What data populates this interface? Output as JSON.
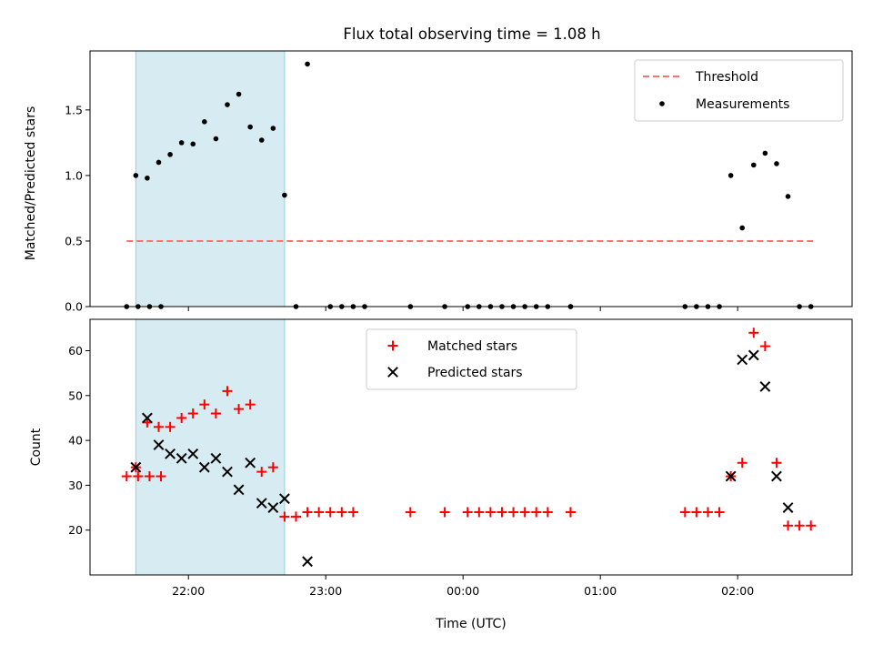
{
  "chart_data": {
    "type": "scatter",
    "title": "Flux total observing time = 1.08 h",
    "shared_x": {
      "label": "Time (UTC)",
      "range": [
        "21:17",
        "02:50"
      ],
      "ticks": [
        {
          "time": "22:00",
          "label": "22:00"
        },
        {
          "time": "23:00",
          "label": "23:00"
        },
        {
          "time": "00:00",
          "label": "00:00"
        },
        {
          "time": "01:00",
          "label": "01:00"
        },
        {
          "time": "02:00",
          "label": "02:00"
        }
      ],
      "highlight_span": {
        "start": "21:37",
        "end": "22:42",
        "color": "#add8e6"
      }
    },
    "panels": [
      {
        "ylabel": "Matched/Predicted stars",
        "ylim": [
          0,
          1.95
        ],
        "yticks": [
          0.0,
          0.5,
          1.0,
          1.5
        ],
        "ytick_labels": [
          "0.0",
          "0.5",
          "1.0",
          "1.5"
        ],
        "legend": {
          "position": "upper right",
          "entries": [
            "Threshold",
            "Measurements"
          ]
        },
        "threshold": {
          "name": "Threshold",
          "y": 0.5,
          "x_start": "21:33",
          "x_end": "02:33",
          "color": "#ff7070",
          "style": "dashed"
        },
        "measurements": {
          "name": "Measurements",
          "color": "#000000",
          "points": [
            [
              "21:33",
              0
            ],
            [
              "21:38",
              0
            ],
            [
              "21:43",
              0
            ],
            [
              "21:48",
              0
            ],
            [
              "21:37",
              1.0
            ],
            [
              "21:42",
              0.98
            ],
            [
              "21:47",
              1.1
            ],
            [
              "21:52",
              1.16
            ],
            [
              "21:57",
              1.25
            ],
            [
              "22:02",
              1.24
            ],
            [
              "22:07",
              1.41
            ],
            [
              "22:12",
              1.28
            ],
            [
              "22:17",
              1.54
            ],
            [
              "22:22",
              1.62
            ],
            [
              "22:27",
              1.37
            ],
            [
              "22:32",
              1.27
            ],
            [
              "22:37",
              1.36
            ],
            [
              "22:42",
              0.85
            ],
            [
              "22:47",
              0
            ],
            [
              "22:52",
              1.85
            ],
            [
              "23:02",
              0
            ],
            [
              "23:07",
              0
            ],
            [
              "23:12",
              0
            ],
            [
              "23:17",
              0
            ],
            [
              "23:37",
              0
            ],
            [
              "23:52",
              0
            ],
            [
              "00:02",
              0
            ],
            [
              "00:07",
              0
            ],
            [
              "00:12",
              0
            ],
            [
              "00:17",
              0
            ],
            [
              "00:22",
              0
            ],
            [
              "00:27",
              0
            ],
            [
              "00:32",
              0
            ],
            [
              "00:37",
              0
            ],
            [
              "00:47",
              0
            ],
            [
              "00:47",
              0
            ],
            [
              "01:37",
              0
            ],
            [
              "01:42",
              0
            ],
            [
              "01:47",
              0
            ],
            [
              "01:52",
              0
            ],
            [
              "01:57",
              1.0
            ],
            [
              "02:02",
              0.6
            ],
            [
              "02:07",
              1.08
            ],
            [
              "02:12",
              1.17
            ],
            [
              "02:17",
              1.09
            ],
            [
              "02:22",
              0.84
            ],
            [
              "02:27",
              0
            ],
            [
              "02:32",
              0
            ]
          ]
        }
      },
      {
        "ylabel": "Count",
        "ylim": [
          10,
          67
        ],
        "yticks": [
          20,
          30,
          40,
          50,
          60
        ],
        "ytick_labels": [
          "20",
          "30",
          "40",
          "50",
          "60"
        ],
        "legend": {
          "position": "upper center",
          "entries": [
            "Matched stars",
            "Predicted stars"
          ]
        },
        "series": [
          {
            "name": "Matched stars",
            "marker": "+",
            "color": "#ff0000",
            "points": [
              [
                "21:33",
                32
              ],
              [
                "21:38",
                32
              ],
              [
                "21:43",
                32
              ],
              [
                "21:48",
                32
              ],
              [
                "21:37",
                34
              ],
              [
                "21:42",
                44
              ],
              [
                "21:47",
                43
              ],
              [
                "21:52",
                43
              ],
              [
                "21:57",
                45
              ],
              [
                "22:02",
                46
              ],
              [
                "22:07",
                48
              ],
              [
                "22:12",
                46
              ],
              [
                "22:17",
                51
              ],
              [
                "22:22",
                47
              ],
              [
                "22:27",
                48
              ],
              [
                "22:32",
                33
              ],
              [
                "22:37",
                34
              ],
              [
                "22:42",
                23
              ],
              [
                "22:47",
                23
              ],
              [
                "22:52",
                24
              ],
              [
                "22:57",
                24
              ],
              [
                "23:02",
                24
              ],
              [
                "23:07",
                24
              ],
              [
                "23:12",
                24
              ],
              [
                "23:37",
                24
              ],
              [
                "23:52",
                24
              ],
              [
                "00:02",
                24
              ],
              [
                "00:07",
                24
              ],
              [
                "00:12",
                24
              ],
              [
                "00:17",
                24
              ],
              [
                "00:22",
                24
              ],
              [
                "00:27",
                24
              ],
              [
                "00:32",
                24
              ],
              [
                "00:37",
                24
              ],
              [
                "00:47",
                24
              ],
              [
                "00:47",
                24
              ],
              [
                "01:37",
                24
              ],
              [
                "01:42",
                24
              ],
              [
                "01:47",
                24
              ],
              [
                "01:52",
                24
              ],
              [
                "01:57",
                32
              ],
              [
                "02:02",
                35
              ],
              [
                "02:07",
                64
              ],
              [
                "02:12",
                61
              ],
              [
                "02:17",
                35
              ],
              [
                "02:22",
                21
              ],
              [
                "02:27",
                21
              ],
              [
                "02:32",
                21
              ]
            ]
          },
          {
            "name": "Predicted stars",
            "marker": "x",
            "color": "#000000",
            "points": [
              [
                "21:37",
                34
              ],
              [
                "21:42",
                45
              ],
              [
                "21:47",
                39
              ],
              [
                "21:52",
                37
              ],
              [
                "21:57",
                36
              ],
              [
                "22:02",
                37
              ],
              [
                "22:07",
                34
              ],
              [
                "22:12",
                36
              ],
              [
                "22:17",
                33
              ],
              [
                "22:22",
                29
              ],
              [
                "22:27",
                35
              ],
              [
                "22:32",
                26
              ],
              [
                "22:37",
                25
              ],
              [
                "22:42",
                27
              ],
              [
                "22:52",
                13
              ],
              [
                "01:57",
                32
              ],
              [
                "02:02",
                58
              ],
              [
                "02:07",
                59
              ],
              [
                "02:12",
                52
              ],
              [
                "02:17",
                32
              ],
              [
                "02:22",
                25
              ]
            ]
          }
        ]
      }
    ]
  }
}
